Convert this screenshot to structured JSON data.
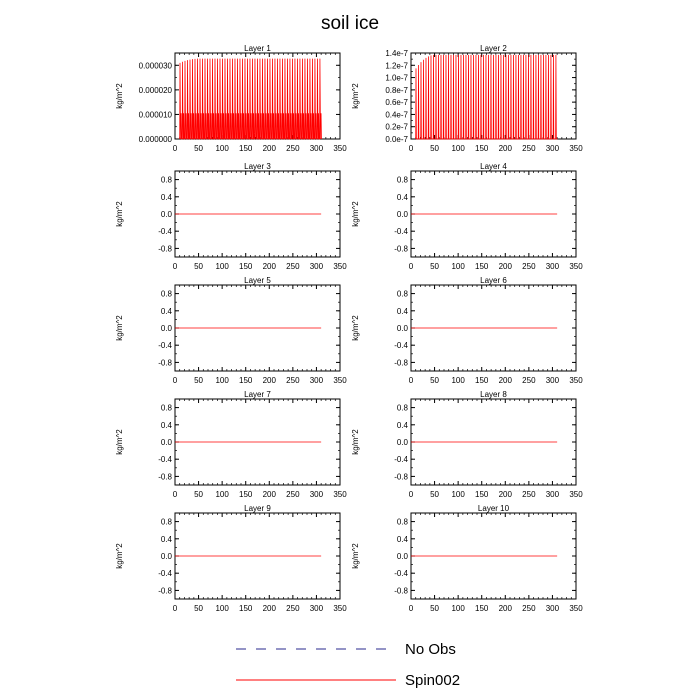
{
  "figure": {
    "title": "soil ice",
    "legend": {
      "position": "bottom-center",
      "entries": [
        {
          "label": "No Obs",
          "color": "#2a2a8c",
          "dash": "dashed"
        },
        {
          "label": "Spin002",
          "color": "#ff0000",
          "dash": "solid"
        }
      ]
    }
  },
  "chart_data": [
    {
      "type": "line",
      "title": "Layer 1",
      "ylabel": "kg/m^2",
      "xlim": [
        0,
        350
      ],
      "ylim": [
        0,
        3.5e-05
      ],
      "x_ticks": [
        0,
        50,
        100,
        150,
        200,
        250,
        300,
        350
      ],
      "y_ticks": [
        0,
        1e-05,
        2e-05,
        3e-05
      ],
      "y_tick_labels": [
        "0.000000",
        "0.000010",
        "0.000020",
        "0.000030"
      ],
      "grid": false,
      "series": [
        {
          "name": "Spin002",
          "pattern": "spikes",
          "x_range": [
            10,
            308
          ],
          "period": 5.3,
          "peak_start": 3.1e-05,
          "peak_end": 3.27e-05,
          "base_high": 1.05e-05,
          "base_low": 0.0
        }
      ]
    },
    {
      "type": "line",
      "title": "Layer 2",
      "ylabel": "kg/m^2",
      "xlim": [
        0,
        350
      ],
      "ylim": [
        0,
        1.4e-07
      ],
      "x_ticks": [
        0,
        50,
        100,
        150,
        200,
        250,
        300,
        350
      ],
      "y_ticks": [
        0,
        2e-08,
        4e-08,
        6e-08,
        8e-08,
        1e-07,
        1.2e-07,
        1.4e-07
      ],
      "y_tick_labels": [
        "0.0e-7",
        "0.2e-7",
        "0.4e-7",
        "0.6e-7",
        "0.8e-7",
        "1.0e-7",
        "1.2e-7",
        "1.4e-7"
      ],
      "grid": false,
      "series": [
        {
          "name": "Spin002",
          "pattern": "spikes",
          "x_range": [
            10,
            310
          ],
          "period": 5.3,
          "peak_start": 1.15e-07,
          "peak_end": 1.37e-07,
          "base_high": 0,
          "base_low": 0
        }
      ]
    },
    {
      "type": "line",
      "title": "Layer 3",
      "ylabel": "kg/m^2",
      "xlim": [
        0,
        350
      ],
      "ylim": [
        -1,
        1
      ],
      "x_ticks": [
        0,
        50,
        100,
        150,
        200,
        250,
        300,
        350
      ],
      "y_ticks": [
        -0.8,
        -0.4,
        0.0,
        0.4,
        0.8
      ],
      "y_tick_labels": [
        "-0.8",
        "-0.4",
        "0.0",
        "0.4",
        "0.8"
      ],
      "grid": false,
      "series": [
        {
          "name": "Spin002",
          "x": [
            0,
            310
          ],
          "y": [
            0,
            0
          ]
        }
      ]
    },
    {
      "type": "line",
      "title": "Layer 4",
      "ylabel": "kg/m^2",
      "xlim": [
        0,
        350
      ],
      "ylim": [
        -1,
        1
      ],
      "x_ticks": [
        0,
        50,
        100,
        150,
        200,
        250,
        300,
        350
      ],
      "y_ticks": [
        -0.8,
        -0.4,
        0.0,
        0.4,
        0.8
      ],
      "y_tick_labels": [
        "-0.8",
        "-0.4",
        "0.0",
        "0.4",
        "0.8"
      ],
      "grid": false,
      "series": [
        {
          "name": "Spin002",
          "x": [
            0,
            310
          ],
          "y": [
            0,
            0
          ]
        }
      ]
    },
    {
      "type": "line",
      "title": "Layer 5",
      "ylabel": "kg/m^2",
      "xlim": [
        0,
        350
      ],
      "ylim": [
        -1,
        1
      ],
      "x_ticks": [
        0,
        50,
        100,
        150,
        200,
        250,
        300,
        350
      ],
      "y_ticks": [
        -0.8,
        -0.4,
        0.0,
        0.4,
        0.8
      ],
      "y_tick_labels": [
        "-0.8",
        "-0.4",
        "0.0",
        "0.4",
        "0.8"
      ],
      "grid": false,
      "series": [
        {
          "name": "Spin002",
          "x": [
            0,
            310
          ],
          "y": [
            0,
            0
          ]
        }
      ]
    },
    {
      "type": "line",
      "title": "Layer 6",
      "ylabel": "kg/m^2",
      "xlim": [
        0,
        350
      ],
      "ylim": [
        -1,
        1
      ],
      "x_ticks": [
        0,
        50,
        100,
        150,
        200,
        250,
        300,
        350
      ],
      "y_ticks": [
        -0.8,
        -0.4,
        0.0,
        0.4,
        0.8
      ],
      "y_tick_labels": [
        "-0.8",
        "-0.4",
        "0.0",
        "0.4",
        "0.8"
      ],
      "grid": false,
      "series": [
        {
          "name": "Spin002",
          "x": [
            0,
            310
          ],
          "y": [
            0,
            0
          ]
        }
      ]
    },
    {
      "type": "line",
      "title": "Layer 7",
      "ylabel": "kg/m^2",
      "xlim": [
        0,
        350
      ],
      "ylim": [
        -1,
        1
      ],
      "x_ticks": [
        0,
        50,
        100,
        150,
        200,
        250,
        300,
        350
      ],
      "y_ticks": [
        -0.8,
        -0.4,
        0.0,
        0.4,
        0.8
      ],
      "y_tick_labels": [
        "-0.8",
        "-0.4",
        "0.0",
        "0.4",
        "0.8"
      ],
      "grid": false,
      "series": [
        {
          "name": "Spin002",
          "x": [
            0,
            310
          ],
          "y": [
            0,
            0
          ]
        }
      ]
    },
    {
      "type": "line",
      "title": "Layer 8",
      "ylabel": "kg/m^2",
      "xlim": [
        0,
        350
      ],
      "ylim": [
        -1,
        1
      ],
      "x_ticks": [
        0,
        50,
        100,
        150,
        200,
        250,
        300,
        350
      ],
      "y_ticks": [
        -0.8,
        -0.4,
        0.0,
        0.4,
        0.8
      ],
      "y_tick_labels": [
        "-0.8",
        "-0.4",
        "0.0",
        "0.4",
        "0.8"
      ],
      "grid": false,
      "series": [
        {
          "name": "Spin002",
          "x": [
            0,
            310
          ],
          "y": [
            0,
            0
          ]
        }
      ]
    },
    {
      "type": "line",
      "title": "Layer 9",
      "ylabel": "kg/m^2",
      "xlim": [
        0,
        350
      ],
      "ylim": [
        -1,
        1
      ],
      "x_ticks": [
        0,
        50,
        100,
        150,
        200,
        250,
        300,
        350
      ],
      "y_ticks": [
        -0.8,
        -0.4,
        0.0,
        0.4,
        0.8
      ],
      "y_tick_labels": [
        "-0.8",
        "-0.4",
        "0.0",
        "0.4",
        "0.8"
      ],
      "grid": false,
      "series": [
        {
          "name": "Spin002",
          "x": [
            0,
            310
          ],
          "y": [
            0,
            0
          ]
        }
      ]
    },
    {
      "type": "line",
      "title": "Layer 10",
      "ylabel": "kg/m^2",
      "xlim": [
        0,
        350
      ],
      "ylim": [
        -1,
        1
      ],
      "x_ticks": [
        0,
        50,
        100,
        150,
        200,
        250,
        300,
        350
      ],
      "y_ticks": [
        -0.8,
        -0.4,
        0.0,
        0.4,
        0.8
      ],
      "y_tick_labels": [
        "-0.8",
        "-0.4",
        "0.0",
        "0.4",
        "0.8"
      ],
      "grid": false,
      "series": [
        {
          "name": "Spin002",
          "x": [
            0,
            310
          ],
          "y": [
            0,
            0
          ]
        }
      ]
    }
  ]
}
